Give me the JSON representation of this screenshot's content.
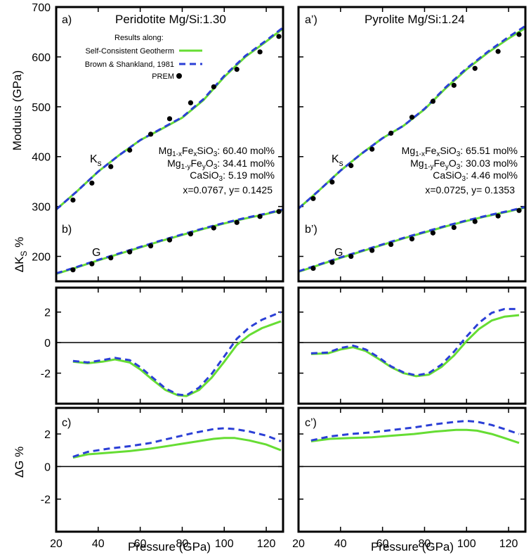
{
  "figure": {
    "xlabel": "Pressure (GPa)",
    "xticks": [
      20,
      40,
      60,
      80,
      100,
      120
    ],
    "legend_title": "Results along:",
    "legend_items": [
      "Self-Consistent Geotherm",
      "Brown & Shankland, 1981",
      "PREM"
    ],
    "colors": {
      "green": "#66dd33",
      "blue": "#2b3fd6",
      "black": "#000000"
    }
  },
  "columns": [
    {
      "top": {
        "label": "a)",
        "title": "Peridotite Mg/Si:1.30",
        "ks_label": "K",
        "ks_sub": "s",
        "g_label": "G",
        "comp1_a": "Mg",
        "comp1_sub1": "1-x",
        "comp1_b": "Fe",
        "comp1_sub2": "x",
        "comp1_c": "SiO",
        "comp1_sub3": "3",
        "comp1_val": ": 60.40 mol%",
        "comp2_a": "Mg",
        "comp2_sub1": "1-y",
        "comp2_b": "Fe",
        "comp2_sub2": "y",
        "comp2_c": "O",
        "comp2_sub3": "3",
        "comp2_val": ": 34.41 mol%",
        "comp3_a": "CaSiO",
        "comp3_sub": "3",
        "comp3_val": ":   5.19 mol%",
        "xy": "x=0.0767, y= 0.1425"
      },
      "mid": {
        "label": "b)"
      },
      "bot": {
        "label": "c)"
      }
    },
    {
      "top": {
        "label": "a’)",
        "title": "Pyrolite Mg/Si:1.24",
        "ks_label": "K",
        "ks_sub": "s",
        "g_label": "G",
        "comp1_a": "Mg",
        "comp1_sub1": "1-x",
        "comp1_b": "Fe",
        "comp1_sub2": "x",
        "comp1_c": "SiO",
        "comp1_sub3": "3",
        "comp1_val": ": 65.51 mol%",
        "comp2_a": "Mg",
        "comp2_sub1": "1-y",
        "comp2_b": "Fe",
        "comp2_sub2": "y",
        "comp2_c": "O",
        "comp2_sub3": "3",
        "comp2_val": ": 30.03 mol%",
        "comp3_a": "CaSiO",
        "comp3_sub": "3",
        "comp3_val": ":   4.46 mol%",
        "xy": "x=0.0725, y= 0.1353"
      },
      "mid": {
        "label": "b’)"
      },
      "bot": {
        "label": "c’)"
      }
    }
  ],
  "chart_data": [
    {
      "type": "line",
      "panel": "a)",
      "title": "Peridotite Mg/Si:1.30",
      "xlabel": "Pressure (GPa)",
      "ylabel": "Modulus (GPa)",
      "xlim": [
        20,
        128
      ],
      "ylim": [
        150,
        700
      ],
      "yticks": [
        200,
        300,
        400,
        500,
        600,
        700
      ],
      "series": [
        {
          "name": "Ks Self-Consistent Geotherm",
          "style": "green-solid",
          "x": [
            20,
            30,
            40,
            50,
            60,
            70,
            80,
            90,
            100,
            110,
            120,
            128
          ],
          "y": [
            294,
            331,
            370,
            403,
            433,
            455,
            478,
            513,
            560,
            600,
            631,
            657
          ]
        },
        {
          "name": "Ks Brown & Shankland, 1981",
          "style": "blue-dashed",
          "x": [
            20,
            30,
            40,
            50,
            60,
            70,
            80,
            90,
            100,
            110,
            120,
            128
          ],
          "y": [
            294,
            331,
            370,
            403,
            433,
            456,
            479,
            515,
            562,
            602,
            633,
            659
          ]
        },
        {
          "name": "G Self-Consistent Geotherm",
          "style": "green-solid",
          "x": [
            20,
            30,
            40,
            50,
            60,
            70,
            80,
            90,
            100,
            110,
            120,
            128
          ],
          "y": [
            165,
            178,
            192,
            205,
            218,
            231,
            243,
            255,
            266,
            276,
            285,
            293
          ]
        },
        {
          "name": "G Brown & Shankland, 1981",
          "style": "blue-dashed",
          "x": [
            20,
            30,
            40,
            50,
            60,
            70,
            80,
            90,
            100,
            110,
            120,
            128
          ],
          "y": [
            166,
            179,
            193,
            206,
            219,
            232,
            244,
            256,
            267,
            277,
            286,
            294
          ]
        },
        {
          "name": "Ks PREM",
          "style": "black-dots",
          "x": [
            28,
            37,
            46,
            55,
            65,
            74,
            84,
            95,
            106,
            117,
            126
          ],
          "y": [
            313,
            347,
            380,
            413,
            445,
            476,
            508,
            540,
            575,
            610,
            641
          ]
        },
        {
          "name": "G PREM",
          "style": "black-dots",
          "x": [
            28,
            37,
            46,
            55,
            65,
            74,
            84,
            95,
            106,
            117,
            126
          ],
          "y": [
            173,
            185,
            197,
            209,
            221,
            233,
            245,
            257,
            268,
            280,
            290
          ]
        }
      ]
    },
    {
      "type": "line",
      "panel": "a')",
      "title": "Pyrolite Mg/Si:1.24",
      "xlabel": "Pressure (GPa)",
      "ylabel": "Modulus (GPa)",
      "xlim": [
        20,
        128
      ],
      "ylim": [
        150,
        700
      ],
      "yticks": [
        200,
        300,
        400,
        500,
        600,
        700
      ],
      "series": [
        {
          "name": "Ks Self-Consistent Geotherm",
          "style": "green-solid",
          "x": [
            20,
            30,
            40,
            50,
            60,
            70,
            80,
            90,
            100,
            110,
            120,
            128
          ],
          "y": [
            296,
            333,
            372,
            406,
            437,
            462,
            495,
            537,
            575,
            608,
            637,
            658
          ]
        },
        {
          "name": "Ks Brown & Shankland, 1981",
          "style": "blue-dashed",
          "x": [
            20,
            30,
            40,
            50,
            60,
            70,
            80,
            90,
            100,
            110,
            120,
            128
          ],
          "y": [
            296,
            333,
            372,
            406,
            437,
            462,
            496,
            539,
            577,
            610,
            640,
            662
          ]
        },
        {
          "name": "G Self-Consistent Geotherm",
          "style": "green-solid",
          "x": [
            20,
            30,
            40,
            50,
            60,
            70,
            80,
            90,
            100,
            110,
            120,
            128
          ],
          "y": [
            169,
            183,
            197,
            210,
            223,
            236,
            248,
            260,
            271,
            281,
            290,
            298
          ]
        },
        {
          "name": "G Brown & Shankland, 1981",
          "style": "blue-dashed",
          "x": [
            20,
            30,
            40,
            50,
            60,
            70,
            80,
            90,
            100,
            110,
            120,
            128
          ],
          "y": [
            170,
            184,
            198,
            211,
            224,
            237,
            249,
            261,
            272,
            282,
            291,
            299
          ]
        },
        {
          "name": "Ks PREM",
          "style": "black-dots",
          "x": [
            27,
            36,
            45,
            55,
            64,
            74,
            84,
            94,
            104,
            115,
            125
          ],
          "y": [
            316,
            349,
            382,
            415,
            447,
            479,
            511,
            543,
            577,
            611,
            645
          ]
        },
        {
          "name": "G PREM",
          "style": "black-dots",
          "x": [
            27,
            36,
            45,
            55,
            64,
            74,
            84,
            94,
            104,
            115,
            125
          ],
          "y": [
            176,
            188,
            200,
            212,
            224,
            235,
            247,
            258,
            270,
            281,
            292
          ]
        }
      ]
    },
    {
      "type": "line",
      "panel": "b)",
      "ylabel": "ΔK_S %",
      "xlim": [
        20,
        128
      ],
      "ylim": [
        -4,
        3.6
      ],
      "yticks": [
        -2,
        0,
        2
      ],
      "series": [
        {
          "name": "Self-Consistent Geotherm",
          "style": "green-solid",
          "x": [
            28,
            35,
            42,
            48,
            55,
            60,
            66,
            72,
            78,
            82,
            88,
            94,
            100,
            106,
            112,
            118,
            127
          ],
          "y": [
            -1.25,
            -1.35,
            -1.25,
            -1.1,
            -1.3,
            -1.75,
            -2.45,
            -3.1,
            -3.45,
            -3.5,
            -3.1,
            -2.3,
            -1.25,
            -0.15,
            0.5,
            0.95,
            1.4
          ]
        },
        {
          "name": "Brown & Shankland, 1981",
          "style": "blue-dashed",
          "x": [
            28,
            35,
            42,
            48,
            55,
            60,
            66,
            72,
            78,
            82,
            88,
            94,
            100,
            106,
            112,
            118,
            127
          ],
          "y": [
            -1.2,
            -1.3,
            -1.15,
            -1.0,
            -1.15,
            -1.6,
            -2.3,
            -3.0,
            -3.4,
            -3.45,
            -2.95,
            -2.05,
            -0.9,
            0.25,
            1.0,
            1.5,
            2.0
          ]
        }
      ]
    },
    {
      "type": "line",
      "panel": "b')",
      "ylabel": "ΔK_S %",
      "xlim": [
        20,
        128
      ],
      "ylim": [
        -4,
        3.6
      ],
      "yticks": [
        -2,
        0,
        2
      ],
      "series": [
        {
          "name": "Self-Consistent Geotherm",
          "style": "green-solid",
          "x": [
            26,
            34,
            40,
            46,
            52,
            58,
            64,
            70,
            76,
            82,
            88,
            94,
            100,
            106,
            112,
            118,
            125
          ],
          "y": [
            -0.75,
            -0.7,
            -0.45,
            -0.3,
            -0.55,
            -1.05,
            -1.6,
            -2.0,
            -2.2,
            -2.1,
            -1.6,
            -0.85,
            0.1,
            0.9,
            1.45,
            1.7,
            1.8
          ]
        },
        {
          "name": "Brown & Shankland, 1981",
          "style": "blue-dashed",
          "x": [
            26,
            34,
            40,
            46,
            52,
            58,
            64,
            70,
            76,
            82,
            88,
            94,
            100,
            106,
            112,
            118,
            125
          ],
          "y": [
            -0.7,
            -0.65,
            -0.35,
            -0.2,
            -0.45,
            -0.95,
            -1.55,
            -1.95,
            -2.15,
            -2.0,
            -1.45,
            -0.6,
            0.4,
            1.3,
            1.95,
            2.2,
            2.2
          ]
        }
      ]
    },
    {
      "type": "line",
      "panel": "c)",
      "ylabel": "ΔG %",
      "xlim": [
        20,
        128
      ],
      "ylim": [
        -4,
        3.6
      ],
      "yticks": [
        -2,
        0,
        2
      ],
      "series": [
        {
          "name": "Self-Consistent Geotherm",
          "style": "green-solid",
          "x": [
            28,
            35,
            45,
            55,
            65,
            75,
            85,
            95,
            100,
            105,
            112,
            120,
            127
          ],
          "y": [
            0.55,
            0.75,
            0.85,
            0.95,
            1.1,
            1.3,
            1.5,
            1.7,
            1.75,
            1.75,
            1.6,
            1.35,
            1.0
          ]
        },
        {
          "name": "Brown & Shankland, 1981",
          "style": "blue-dashed",
          "x": [
            28,
            35,
            45,
            55,
            65,
            75,
            85,
            95,
            100,
            105,
            112,
            120,
            127
          ],
          "y": [
            0.6,
            0.9,
            1.1,
            1.25,
            1.45,
            1.75,
            2.05,
            2.3,
            2.35,
            2.3,
            2.15,
            1.9,
            1.55
          ]
        }
      ]
    },
    {
      "type": "line",
      "panel": "c')",
      "ylabel": "ΔG %",
      "xlim": [
        20,
        128
      ],
      "ylim": [
        -4,
        3.6
      ],
      "yticks": [
        -2,
        0,
        2
      ],
      "series": [
        {
          "name": "Self-Consistent Geotherm",
          "style": "green-solid",
          "x": [
            26,
            35,
            45,
            55,
            65,
            75,
            85,
            95,
            100,
            105,
            112,
            118,
            125
          ],
          "y": [
            1.55,
            1.7,
            1.75,
            1.8,
            1.9,
            2.0,
            2.15,
            2.25,
            2.25,
            2.2,
            2.0,
            1.75,
            1.45
          ]
        },
        {
          "name": "Brown & Shankland, 1981",
          "style": "blue-dashed",
          "x": [
            26,
            35,
            45,
            55,
            65,
            75,
            85,
            95,
            100,
            105,
            112,
            118,
            125
          ],
          "y": [
            1.6,
            1.85,
            2.0,
            2.1,
            2.25,
            2.4,
            2.6,
            2.75,
            2.8,
            2.75,
            2.55,
            2.3,
            2.0
          ]
        }
      ]
    }
  ]
}
